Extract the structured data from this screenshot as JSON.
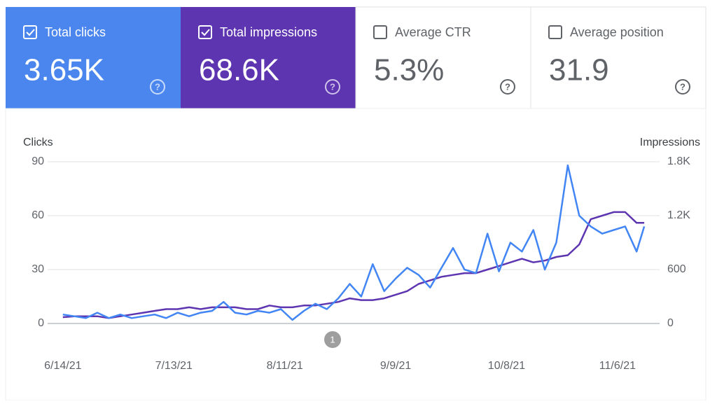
{
  "cards": [
    {
      "label": "Total clicks",
      "value": "3.65K",
      "checked": true,
      "color": "#4a86ed"
    },
    {
      "label": "Total impressions",
      "value": "68.6K",
      "checked": true,
      "color": "#5e35b1"
    },
    {
      "label": "Average CTR",
      "value": "5.3%",
      "checked": false,
      "color": "#ffffff"
    },
    {
      "label": "Average position",
      "value": "31.9",
      "checked": false,
      "color": "#ffffff"
    }
  ],
  "chart_data": {
    "type": "line",
    "y_label": "Clicks",
    "y2_label": "Impressions",
    "x": [
      "6/14/21",
      "6/17/21",
      "6/20/21",
      "6/23/21",
      "6/26/21",
      "6/29/21",
      "7/2/21",
      "7/5/21",
      "7/8/21",
      "7/11/21",
      "7/14/21",
      "7/17/21",
      "7/20/21",
      "7/23/21",
      "7/26/21",
      "7/29/21",
      "8/1/21",
      "8/4/21",
      "8/7/21",
      "8/10/21",
      "8/13/21",
      "8/16/21",
      "8/19/21",
      "8/22/21",
      "8/25/21",
      "8/28/21",
      "8/31/21",
      "9/3/21",
      "9/6/21",
      "9/9/21",
      "9/12/21",
      "9/15/21",
      "9/18/21",
      "9/21/21",
      "9/24/21",
      "9/27/21",
      "9/30/21",
      "10/3/21",
      "10/6/21",
      "10/9/21",
      "10/12/21",
      "10/15/21",
      "10/18/21",
      "10/21/21",
      "10/24/21",
      "10/27/21",
      "10/30/21",
      "11/2/21",
      "11/5/21",
      "11/8/21",
      "11/11/21",
      "11/13/21"
    ],
    "series": [
      {
        "color": "#4285f4",
        "axis": "y",
        "values": [
          5,
          4,
          3,
          6,
          3,
          5,
          3,
          4,
          5,
          3,
          6,
          4,
          6,
          7,
          12,
          6,
          5,
          7,
          6,
          8,
          2,
          7,
          11,
          8,
          14,
          22,
          15,
          33,
          18,
          25,
          31,
          27,
          20,
          31,
          42,
          30,
          28,
          50,
          29,
          45,
          40,
          52,
          30,
          45,
          88,
          60,
          54,
          50,
          52,
          54,
          40,
          54
        ]
      },
      {
        "color": "#5e35b1",
        "axis": "y2",
        "values": [
          70,
          80,
          80,
          80,
          60,
          80,
          100,
          120,
          140,
          160,
          160,
          180,
          160,
          180,
          180,
          180,
          160,
          160,
          200,
          180,
          180,
          200,
          200,
          220,
          240,
          280,
          260,
          260,
          280,
          320,
          360,
          440,
          480,
          520,
          540,
          560,
          560,
          600,
          640,
          680,
          720,
          680,
          700,
          740,
          760,
          880,
          1160,
          1200,
          1240,
          1240,
          1120,
          1120
        ]
      }
    ],
    "xlim": [
      "6/10/21",
      "11/17/21"
    ],
    "xticks": [
      "6/14/21",
      "7/13/21",
      "8/11/21",
      "9/9/21",
      "10/8/21",
      "11/6/21"
    ],
    "ylim": [
      0,
      90
    ],
    "yticks": [
      0,
      30,
      60,
      90
    ],
    "y2lim": [
      0,
      1800
    ],
    "y2ticks": [
      0,
      600,
      {
        "value": 1200,
        "label": "1.2K"
      },
      {
        "value": 1800,
        "label": "1.8K"
      }
    ],
    "grid": true,
    "annotations": [
      "1"
    ]
  }
}
